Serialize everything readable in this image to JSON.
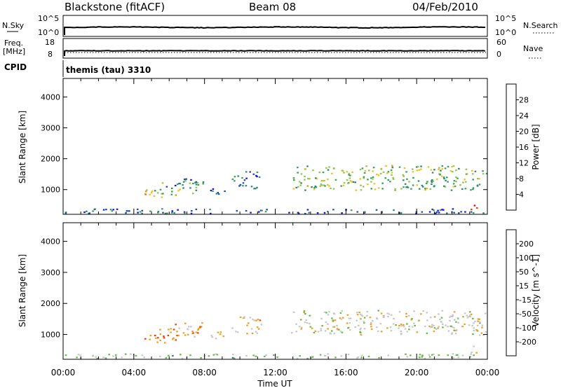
{
  "header": {
    "station": "Blackstone (fitACF)",
    "beam": "Beam 08",
    "date": "04/Feb/2010"
  },
  "noise_panel": {
    "left_label": "N.Sky",
    "right_label": "N.Search",
    "left_ticks": [
      "10^5",
      "10^0"
    ],
    "right_ticks": [
      "10^5",
      "10^0"
    ]
  },
  "freq_panel": {
    "left_label_1": "Freq.",
    "left_label_2": "[MHz]",
    "right_label": "Nave",
    "left_ticks": [
      "18",
      "8"
    ],
    "right_ticks": [
      "60",
      "0"
    ]
  },
  "cpid_panel": {
    "label": "CPID",
    "value": "themis (tau) 3310"
  },
  "colors": {
    "power_scale": [
      "#1414e6",
      "#2050a8",
      "#2f8a6a",
      "#35a35a",
      "#8fc84a",
      "#f0c020",
      "#f08a10",
      "#f04010",
      "#e00000"
    ],
    "velocity_scale": [
      "#e00000",
      "#f04010",
      "#f0a020",
      "#c8c8c8",
      "#60c040",
      "#2a8a60",
      "#1f4aa8"
    ]
  },
  "chart_data": [
    {
      "type": "heatmap",
      "name": "power",
      "xlabel": "",
      "ylabel": "Slant Range [km]",
      "xlim": [
        0,
        24
      ],
      "ylim": [
        200,
        4600
      ],
      "yticks": [
        "1000",
        "2000",
        "3000",
        "4000"
      ],
      "colorbar_label": "Power [dB]",
      "colorbar_ticks": [
        "4",
        "8",
        "12",
        "16",
        "20",
        "24",
        "28"
      ],
      "colorbar_range": [
        0,
        32
      ],
      "regions": [
        {
          "t0": 4.6,
          "t1": 6.4,
          "r0": 750,
          "r1": 1050,
          "c": 0.55
        },
        {
          "t0": 5.2,
          "t1": 7.6,
          "r0": 900,
          "r1": 1250,
          "c": 0.4
        },
        {
          "t0": 6.3,
          "t1": 8.1,
          "r0": 1150,
          "r1": 1400,
          "c": 0.25
        },
        {
          "t0": 8.2,
          "t1": 9.3,
          "r0": 850,
          "r1": 1100,
          "c": 0.15
        },
        {
          "t0": 9.5,
          "t1": 11.2,
          "r0": 1050,
          "r1": 1600,
          "c": 0.2
        },
        {
          "t0": 12.8,
          "t1": 24.5,
          "r0": 1000,
          "r1": 1800,
          "c": 0.45
        },
        {
          "t0": 23.0,
          "t1": 23.4,
          "r0": 350,
          "r1": 650,
          "c": 0.85
        },
        {
          "t0": 0.1,
          "t1": 24.5,
          "r0": 200,
          "r1": 400,
          "c": 0.2
        }
      ]
    },
    {
      "type": "heatmap",
      "name": "velocity",
      "xlabel": "Time UT",
      "ylabel": "Slant Range [km]",
      "xlim": [
        0,
        24
      ],
      "ylim": [
        200,
        4600
      ],
      "xticks": [
        "00:00",
        "04:00",
        "08:00",
        "12:00",
        "16:00",
        "20:00",
        "00:00"
      ],
      "yticks": [
        "1000",
        "2000",
        "3000",
        "4000"
      ],
      "colorbar_label": "Velocity [m s^-1]",
      "colorbar_ticks": [
        "200",
        "100",
        "50",
        "15",
        "-15",
        "-50",
        "-100",
        "-200"
      ],
      "colorbar_range": [
        -250,
        250
      ],
      "regions": [
        {
          "t0": 4.6,
          "t1": 6.4,
          "r0": 750,
          "r1": 1050,
          "c": 0.3
        },
        {
          "t0": 5.2,
          "t1": 7.6,
          "r0": 900,
          "r1": 1250,
          "c": 0.35
        },
        {
          "t0": 6.3,
          "t1": 8.1,
          "r0": 1150,
          "r1": 1400,
          "c": 0.4
        },
        {
          "t0": 8.2,
          "t1": 9.3,
          "r0": 850,
          "r1": 1100,
          "c": 0.4
        },
        {
          "t0": 9.5,
          "t1": 11.2,
          "r0": 1050,
          "r1": 1600,
          "c": 0.4
        },
        {
          "t0": 12.8,
          "t1": 24.5,
          "r0": 1000,
          "r1": 1800,
          "c": 0.5
        },
        {
          "t0": 23.0,
          "t1": 23.4,
          "r0": 350,
          "r1": 650,
          "c": 0.5
        },
        {
          "t0": 0.1,
          "t1": 24.5,
          "r0": 200,
          "r1": 400,
          "c": 0.6
        }
      ]
    }
  ],
  "time_axis": {
    "label": "Time UT",
    "ticks": [
      "00:00",
      "04:00",
      "08:00",
      "12:00",
      "16:00",
      "20:00",
      "00:00"
    ]
  }
}
